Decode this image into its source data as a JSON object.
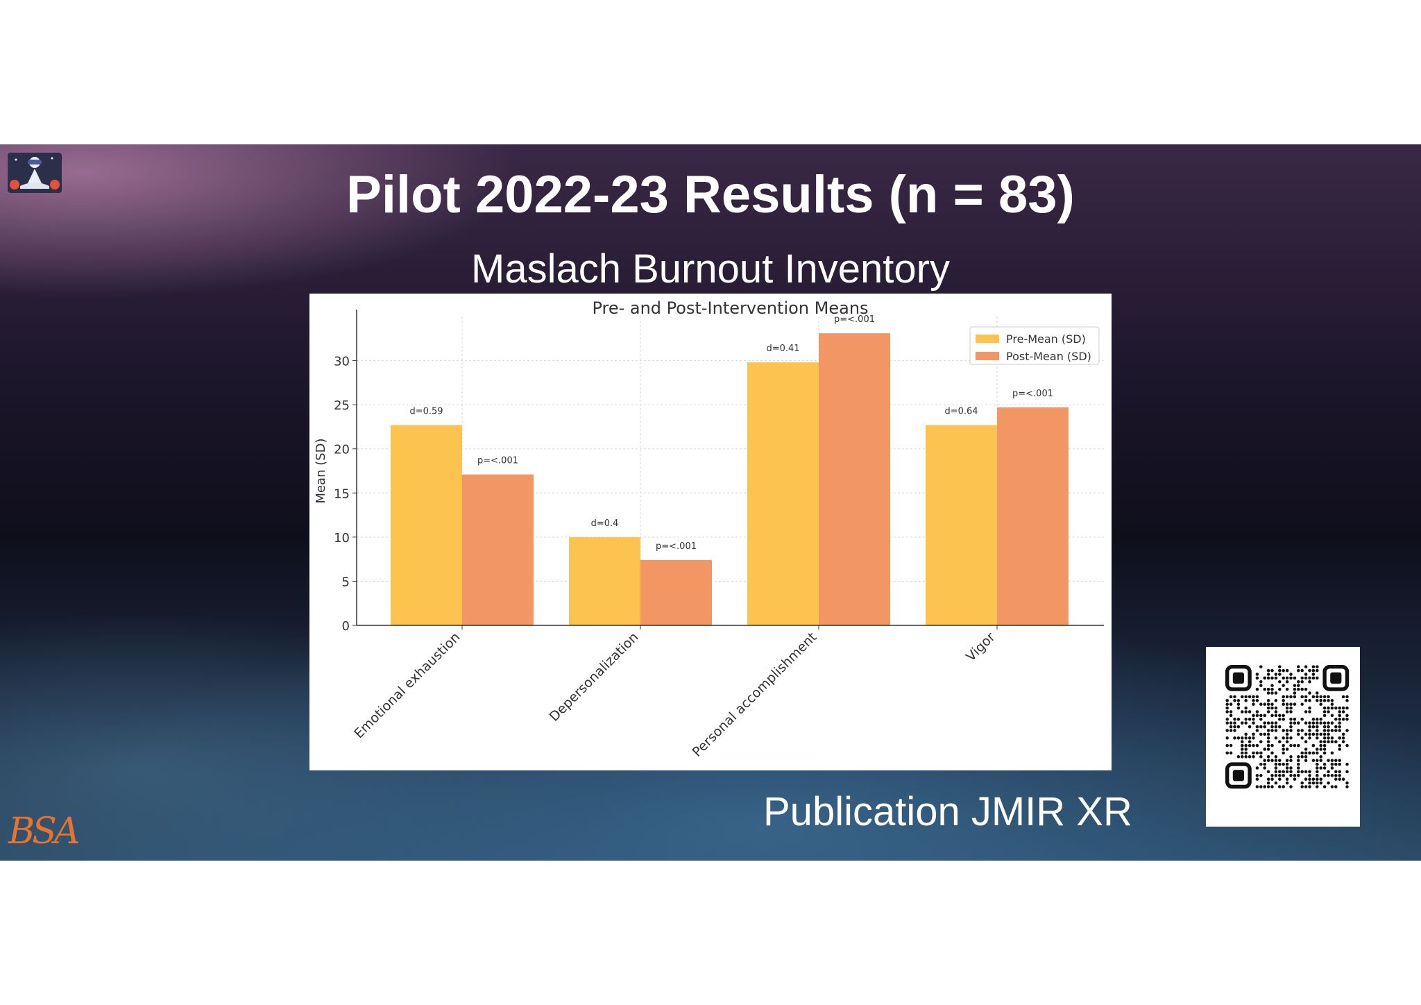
{
  "slide": {
    "title": "Pilot 2022-23 Results (n = 83)",
    "subtitle": "Maslach Burnout Inventory",
    "publication": "Publication JMIR XR",
    "brand_text": "BSA"
  },
  "colors": {
    "pre": "#fcc44f",
    "post": "#f29763",
    "brand_orange": "#e8742c",
    "logo_badge": "#2b2f4a"
  },
  "icons": {
    "logo_badge": "meditating-vr-figure-icon",
    "qr": "qr-code-icon"
  },
  "chart_data": {
    "type": "bar",
    "title": "Pre- and Post-Intervention Means",
    "xlabel": "",
    "ylabel": "Mean (SD)",
    "ylim": [
      0,
      35
    ],
    "yticks": [
      0,
      5,
      10,
      15,
      20,
      25,
      30
    ],
    "grid": true,
    "legend_position": "top-right",
    "categories": [
      "Emotional exhaustion",
      "Depersonalization",
      "Personal accomplishment",
      "Vigor"
    ],
    "series": [
      {
        "name": "Pre-Mean (SD)",
        "values": [
          22.7,
          10.0,
          29.8,
          22.7
        ]
      },
      {
        "name": "Post-Mean (SD)",
        "values": [
          17.1,
          7.4,
          33.1,
          24.7
        ]
      }
    ],
    "annotations": {
      "pre": [
        "d=0.59",
        "d=0.4",
        "d=0.41",
        "d=0.64"
      ],
      "post": [
        "p=<.001",
        "p=<.001",
        "p=<.001",
        "p=<.001"
      ]
    }
  }
}
